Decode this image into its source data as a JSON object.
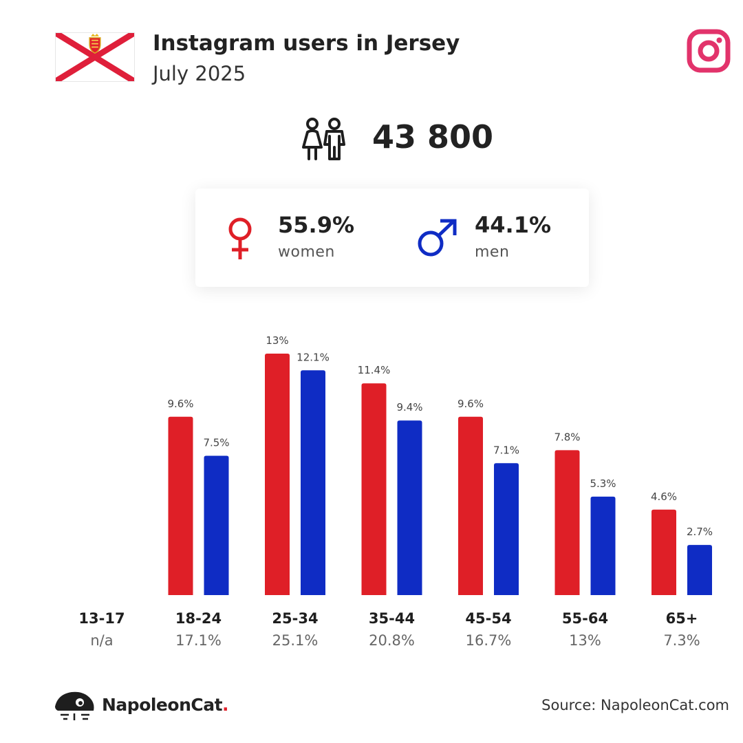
{
  "header": {
    "title": "Instagram users in Jersey",
    "subtitle": "July 2025",
    "flag_icon": "jersey-flag-icon",
    "platform_icon": "instagram-icon"
  },
  "total": {
    "icon": "people-icon",
    "value": "43 800"
  },
  "gender": {
    "women": {
      "icon": "female-symbol-icon",
      "pct": "55.9%",
      "label": "women"
    },
    "men": {
      "icon": "male-symbol-icon",
      "pct": "44.1%",
      "label": "men"
    }
  },
  "colors": {
    "women": "#df1f27",
    "men": "#0f2cc4",
    "instagram": "#e2336b",
    "flag_red": "#df1f3a"
  },
  "chart_data": {
    "type": "bar",
    "categories": [
      "13-17",
      "18-24",
      "25-34",
      "35-44",
      "45-54",
      "55-64",
      "65+"
    ],
    "category_totals": [
      "n/a",
      "17.1%",
      "25.1%",
      "20.8%",
      "16.7%",
      "13%",
      "7.3%"
    ],
    "series": [
      {
        "key": "women",
        "values": [
          null,
          9.6,
          13,
          11.4,
          9.6,
          7.8,
          4.6
        ],
        "labels": [
          "",
          "9.6%",
          "13%",
          "11.4%",
          "9.6%",
          "7.8%",
          "4.6%"
        ],
        "color": "#df1f27"
      },
      {
        "key": "men",
        "values": [
          null,
          7.5,
          12.1,
          9.4,
          7.1,
          5.3,
          2.7
        ],
        "labels": [
          "",
          "7.5%",
          "12.1%",
          "9.4%",
          "7.1%",
          "5.3%",
          "2.7%"
        ],
        "color": "#0f2cc4"
      }
    ],
    "ylim": [
      0,
      13
    ],
    "title": "",
    "xlabel": "",
    "ylabel": ""
  },
  "footer": {
    "brand_icon": "napoleoncat-logo-icon",
    "brand_name": "NapoleonCat",
    "brand_dot": ".",
    "source": "Source: NapoleonCat.com"
  }
}
